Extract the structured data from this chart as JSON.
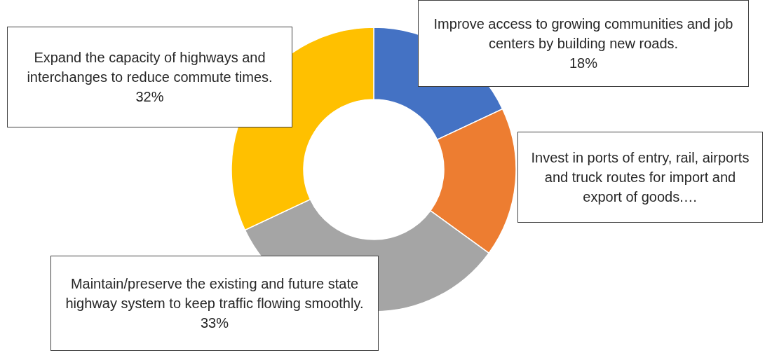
{
  "chart_data": {
    "type": "donut",
    "categories": [
      "Improve access to growing communities and job centers by building new roads.",
      "Invest in ports of entry, rail, airports and truck routes for import and export of goods.…",
      "Maintain/preserve the existing and future state highway system to keep traffic flowing smoothly.",
      "Expand the capacity of highways and interchanges to reduce commute times."
    ],
    "values": [
      18,
      17,
      33,
      32
    ],
    "value_labels": [
      "18%",
      null,
      "33%",
      "32%"
    ],
    "colors": [
      "#4472c4",
      "#ed7d31",
      "#a5a5a5",
      "#ffc000"
    ],
    "legend": false
  }
}
